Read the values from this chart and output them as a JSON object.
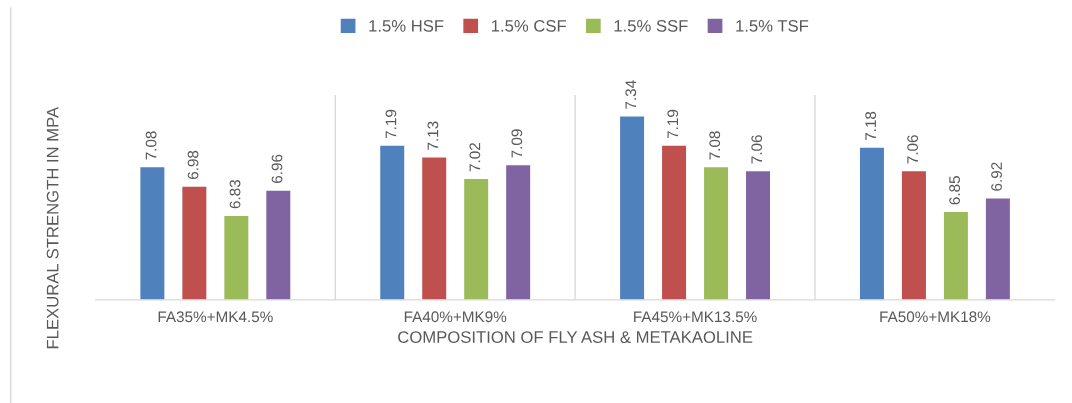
{
  "chart_data": {
    "type": "bar",
    "xlabel": "COMPOSITION OF FLY ASH & METAKAOLINE",
    "ylabel": "FLEXURAL STRENGTH IN MPA",
    "categories": [
      "FA35%+MK4.5%",
      "FA40%+MK9%",
      "FA45%+MK13.5%",
      "FA50%+MK18%"
    ],
    "series": [
      {
        "name": "1.5% HSF",
        "color": "#4f81bd",
        "values": [
          7.08,
          7.19,
          7.34,
          7.18
        ]
      },
      {
        "name": "1.5% CSF",
        "color": "#c0504d",
        "values": [
          6.98,
          7.13,
          7.19,
          7.06
        ]
      },
      {
        "name": "1.5% SSF",
        "color": "#9bbb59",
        "values": [
          6.83,
          7.02,
          7.08,
          6.85
        ]
      },
      {
        "name": "1.5% TSF",
        "color": "#8064a2",
        "values": [
          6.96,
          7.09,
          7.06,
          6.92
        ]
      }
    ],
    "ylim": [
      6.4,
      7.45
    ],
    "data_labels": true,
    "legend": "top",
    "grid": false,
    "tick_labels": "x"
  }
}
